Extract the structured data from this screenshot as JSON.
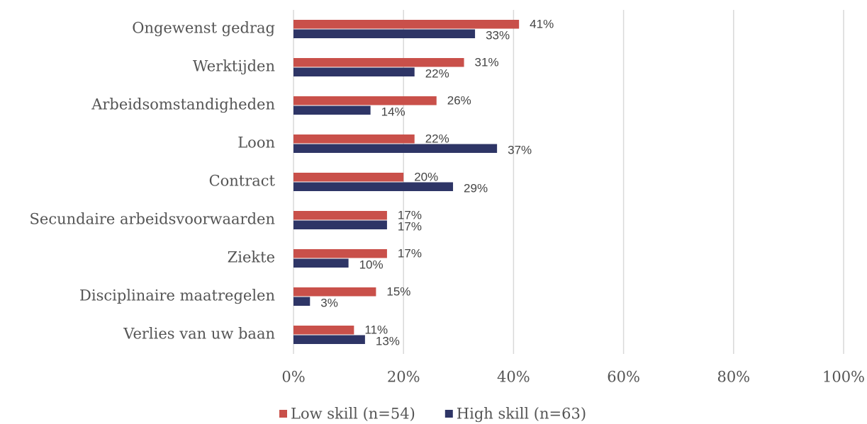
{
  "chart_data": {
    "type": "bar",
    "orientation": "horizontal",
    "categories": [
      "Ongewenst gedrag",
      "Werktijden",
      "Arbeidsomstandigheden",
      "Loon",
      "Contract",
      "Secundaire arbeidsvoorwaarden",
      "Ziekte",
      "Disciplinaire maatregelen",
      "Verlies van uw baan"
    ],
    "series": [
      {
        "name": "Low skill (n=54)",
        "color": "#c9504a",
        "values": [
          41,
          31,
          26,
          22,
          20,
          17,
          17,
          15,
          11
        ],
        "value_labels": [
          "41%",
          "31%",
          "26%",
          "22%",
          "20%",
          "17%",
          "17%",
          "15%",
          "11%"
        ]
      },
      {
        "name": "High skill (n=63)",
        "color": "#2e3566",
        "values": [
          33,
          22,
          14,
          37,
          29,
          17,
          10,
          3,
          13
        ],
        "value_labels": [
          "33%",
          "22%",
          "14%",
          "37%",
          "29%",
          "17%",
          "10%",
          "3%",
          "13%"
        ]
      }
    ],
    "xlim": [
      0,
      100
    ],
    "xticks": [
      {
        "value": 0,
        "label": "0%"
      },
      {
        "value": 20,
        "label": "20%"
      },
      {
        "value": 40,
        "label": "40%"
      },
      {
        "value": 60,
        "label": "60%"
      },
      {
        "value": 80,
        "label": "80%"
      },
      {
        "value": 100,
        "label": "100%"
      }
    ],
    "grid": true,
    "legend": "bottom"
  }
}
